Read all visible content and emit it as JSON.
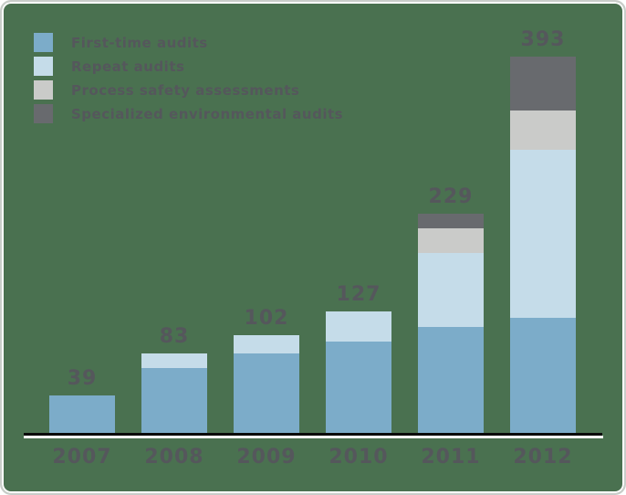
{
  "chart_data": {
    "type": "bar",
    "stacked": true,
    "title": "",
    "xlabel": "",
    "ylabel": "",
    "grid": false,
    "show_y_axis": false,
    "legend_position": "top-left",
    "categories": [
      "2007",
      "2008",
      "2009",
      "2010",
      "2011",
      "2012"
    ],
    "series": [
      {
        "name": "First-time audits",
        "color": "#7CACC9",
        "values": [
          39,
          68,
          83,
          95,
          111,
          120
        ]
      },
      {
        "name": "Repeat audits",
        "color": "#C5DCE9",
        "values": [
          0,
          15,
          19,
          32,
          77,
          176
        ]
      },
      {
        "name": "Process safety assessments",
        "color": "#CACBC9",
        "values": [
          0,
          0,
          0,
          0,
          26,
          41
        ]
      },
      {
        "name": "Specialized environmental audits",
        "color": "#686A6E",
        "values": [
          0,
          0,
          0,
          0,
          15,
          56
        ]
      }
    ],
    "totals": [
      39,
      83,
      102,
      127,
      229,
      393
    ]
  },
  "style": {
    "card_background": "#4A7150",
    "card_border_gray": "#C9CDC9",
    "card_border_white": "#FFFFFF",
    "text_color": "#55575C",
    "axis_line_color": "#0A0A0A",
    "axis_underline_color": "#FFFFFF"
  }
}
